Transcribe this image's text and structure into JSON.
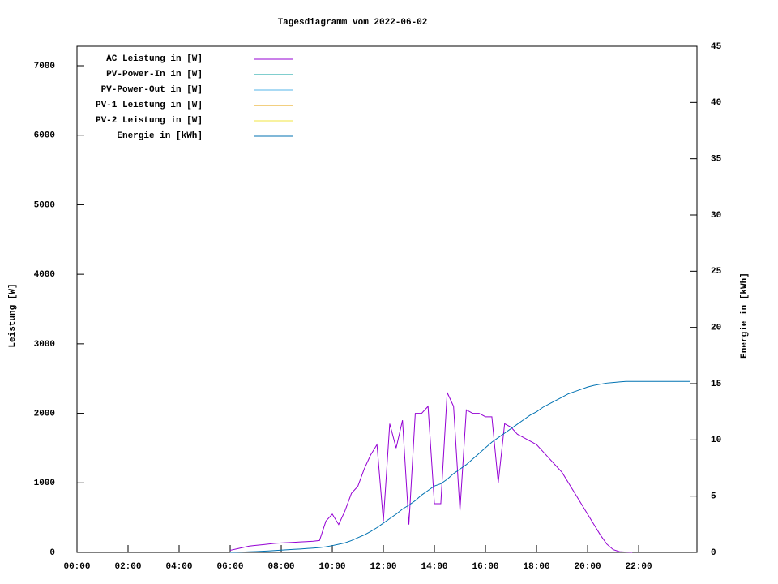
{
  "chart_data": {
    "type": "line",
    "title": "Tagesdiagramm vom 2022-06-02",
    "y_label": "Leistung [W]",
    "y2_label": "Energie in [kWh]",
    "x": [
      "06:00",
      "06:15",
      "06:30",
      "06:45",
      "07:00",
      "07:15",
      "07:30",
      "07:45",
      "08:00",
      "08:15",
      "08:30",
      "08:45",
      "09:00",
      "09:15",
      "09:30",
      "09:45",
      "10:00",
      "10:15",
      "10:30",
      "10:45",
      "11:00",
      "11:15",
      "11:30",
      "11:45",
      "12:00",
      "12:15",
      "12:30",
      "12:45",
      "13:00",
      "13:15",
      "13:30",
      "13:45",
      "14:00",
      "14:15",
      "14:30",
      "14:45",
      "15:00",
      "15:15",
      "15:30",
      "15:45",
      "16:00",
      "16:15",
      "16:30",
      "16:45",
      "17:00",
      "17:15",
      "17:30",
      "17:45",
      "18:00",
      "18:15",
      "18:30",
      "18:45",
      "19:00",
      "19:15",
      "19:30",
      "19:45",
      "20:00",
      "20:15",
      "20:30",
      "20:45",
      "21:00",
      "21:15",
      "21:30",
      "21:45",
      "22:00",
      "22:15",
      "22:30",
      "22:45",
      "23:00",
      "23:15",
      "23:30",
      "23:45",
      "24:00"
    ],
    "series": [
      {
        "name": "AC Leistung in [W]",
        "color": "#9400d3",
        "values": [
          30,
          50,
          70,
          90,
          100,
          110,
          120,
          130,
          135,
          140,
          145,
          150,
          155,
          160,
          170,
          450,
          550,
          400,
          600,
          850,
          950,
          1200,
          1400,
          1550,
          450,
          1850,
          1500,
          1900,
          400,
          2000,
          2000,
          2100,
          700,
          700,
          2300,
          2100,
          600,
          2050,
          2000,
          2000,
          1950,
          1950,
          1000,
          1850,
          1800,
          1700,
          1650,
          1600,
          1550,
          1450,
          1350,
          1250,
          1150,
          1000,
          850,
          700,
          550,
          400,
          250,
          120,
          40,
          10,
          5,
          0,
          null,
          null,
          null,
          null,
          null,
          null,
          null,
          null,
          null
        ]
      },
      {
        "name": "PV-Power-In in [W]",
        "color": "#009e9e",
        "values": [
          null,
          null,
          null,
          null,
          null,
          null,
          null,
          null,
          null,
          null,
          null,
          null,
          null,
          null,
          null,
          null,
          null,
          null,
          null,
          null,
          null,
          null,
          null,
          null,
          null,
          null,
          null,
          null,
          null,
          null,
          null,
          null,
          null,
          null,
          null,
          null,
          null,
          null,
          null,
          null,
          null,
          null,
          null,
          null,
          null,
          null,
          null,
          null,
          null,
          null,
          null,
          null,
          null,
          null,
          null,
          null,
          null,
          null,
          null,
          null,
          null,
          null,
          null,
          null,
          null,
          null,
          null,
          null,
          null,
          null,
          null,
          null,
          null
        ]
      },
      {
        "name": "PV-Power-Out in [W]",
        "color": "#56b4e9",
        "values": [
          null,
          null,
          null,
          null,
          null,
          null,
          null,
          null,
          null,
          null,
          null,
          null,
          null,
          null,
          null,
          null,
          null,
          null,
          null,
          null,
          null,
          null,
          null,
          null,
          null,
          null,
          null,
          null,
          null,
          null,
          null,
          null,
          null,
          null,
          null,
          null,
          null,
          null,
          null,
          null,
          null,
          null,
          null,
          null,
          null,
          null,
          null,
          null,
          null,
          null,
          null,
          null,
          null,
          null,
          null,
          null,
          null,
          null,
          null,
          null,
          null,
          null,
          null,
          null,
          null,
          null,
          null,
          null,
          null,
          null,
          null,
          null,
          null
        ]
      },
      {
        "name": "PV-1 Leistung in [W]",
        "color": "#e69f00",
        "values": [
          null,
          null,
          null,
          null,
          null,
          null,
          null,
          null,
          null,
          null,
          null,
          null,
          null,
          null,
          null,
          null,
          null,
          null,
          null,
          null,
          null,
          null,
          null,
          null,
          null,
          null,
          null,
          null,
          null,
          null,
          null,
          null,
          null,
          null,
          null,
          null,
          null,
          null,
          null,
          null,
          null,
          null,
          null,
          null,
          null,
          null,
          null,
          null,
          null,
          null,
          null,
          null,
          null,
          null,
          null,
          null,
          null,
          null,
          null,
          null,
          null,
          null,
          null,
          null,
          null,
          null,
          null,
          null,
          null,
          null,
          null,
          null,
          null
        ]
      },
      {
        "name": "PV-2 Leistung in [W]",
        "color": "#f0e442",
        "values": [
          null,
          null,
          null,
          null,
          null,
          null,
          null,
          null,
          null,
          null,
          null,
          null,
          null,
          null,
          null,
          null,
          null,
          null,
          null,
          null,
          null,
          null,
          null,
          null,
          null,
          null,
          null,
          null,
          null,
          null,
          null,
          null,
          null,
          null,
          null,
          null,
          null,
          null,
          null,
          null,
          null,
          null,
          null,
          null,
          null,
          null,
          null,
          null,
          null,
          null,
          null,
          null,
          null,
          null,
          null,
          null,
          null,
          null,
          null,
          null,
          null,
          null,
          null,
          null,
          null,
          null,
          null,
          null,
          null,
          null,
          null,
          null,
          null
        ]
      },
      {
        "name": "Energie in [kWh]",
        "color": "#0072b2",
        "axis": "y2",
        "values": [
          0,
          0.01,
          0.03,
          0.05,
          0.07,
          0.1,
          0.13,
          0.16,
          0.2,
          0.23,
          0.27,
          0.3,
          0.34,
          0.38,
          0.42,
          0.5,
          0.6,
          0.72,
          0.85,
          1.05,
          1.3,
          1.55,
          1.85,
          2.2,
          2.6,
          3.0,
          3.4,
          3.85,
          4.2,
          4.6,
          5.1,
          5.5,
          5.9,
          6.1,
          6.5,
          7.0,
          7.4,
          7.8,
          8.3,
          8.8,
          9.3,
          9.8,
          10.2,
          10.6,
          11.0,
          11.4,
          11.8,
          12.2,
          12.5,
          12.9,
          13.2,
          13.5,
          13.8,
          14.1,
          14.3,
          14.5,
          14.7,
          14.85,
          14.95,
          15.05,
          15.1,
          15.15,
          15.2,
          15.2,
          15.2,
          15.2,
          15.2,
          15.2,
          15.2,
          15.2,
          15.2,
          15.2,
          15.2
        ]
      }
    ],
    "xlim": [
      "00:00",
      "24:17"
    ],
    "xticks": [
      "00:00",
      "02:00",
      "04:00",
      "06:00",
      "08:00",
      "10:00",
      "12:00",
      "14:00",
      "16:00",
      "18:00",
      "20:00",
      "22:00"
    ],
    "ylim": [
      0,
      7280
    ],
    "yticks": [
      0,
      1000,
      2000,
      3000,
      4000,
      5000,
      6000,
      7000
    ],
    "y2lim": [
      0,
      45
    ],
    "y2ticks": [
      0,
      5,
      10,
      15,
      20,
      25,
      30,
      35,
      40,
      45
    ],
    "legend": "top-left",
    "grid": false
  }
}
